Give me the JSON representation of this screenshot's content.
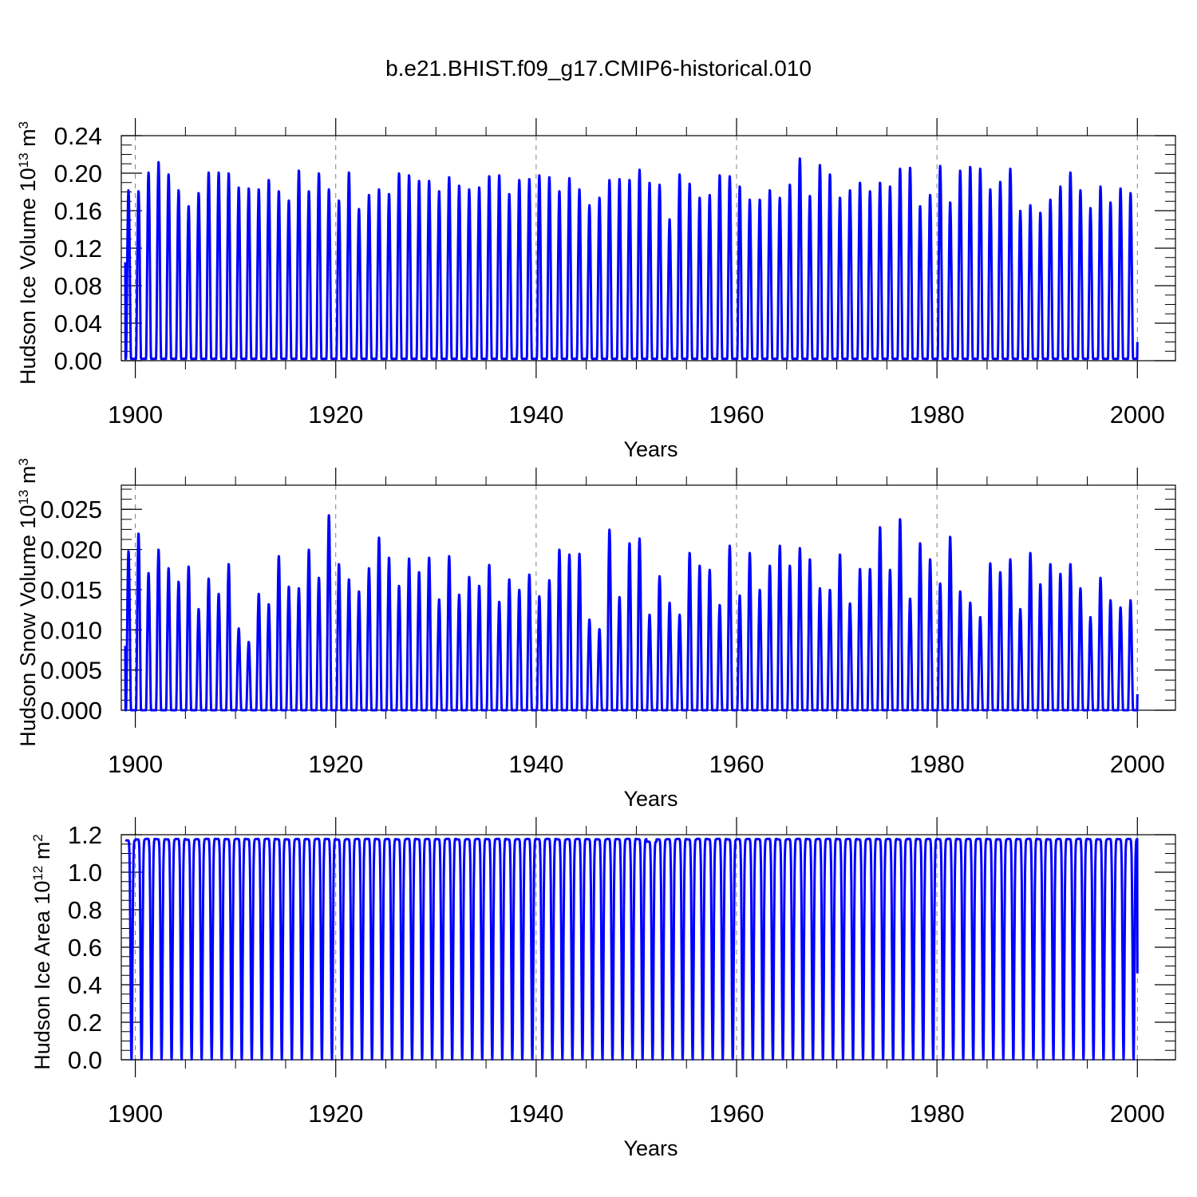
{
  "figure": {
    "title": "b.e21.BHIST.f09_g17.CMIP6-historical.010"
  },
  "style": {
    "line_color": "#0000ff",
    "grid_color": "#808080"
  },
  "chart_data": [
    {
      "type": "line",
      "ylabel": {
        "text": "Hudson Ice Volume 10",
        "exponent": "13",
        "unit": " m",
        "unit_exponent": "3"
      },
      "xlabel": "Years",
      "xlim": [
        1899,
        2000
      ],
      "ylim": [
        0,
        0.24
      ],
      "x_ticks": [
        1900,
        1920,
        1940,
        1960,
        1980,
        2000
      ],
      "x_tick_labels": [
        "1900",
        "1920",
        "1940",
        "1960",
        "1980",
        "2000"
      ],
      "y_ticks": [
        0,
        0.04,
        0.08,
        0.12,
        0.16,
        0.2,
        0.24
      ],
      "y_tick_labels": [
        "0.00",
        "0.04",
        "0.08",
        "0.12",
        "0.16",
        "0.20",
        "0.24"
      ],
      "grid": "vertical dashed at major x ticks",
      "series": [
        {
          "start_year": 1899,
          "start_value": 0.105,
          "end_value": 0.02,
          "min_value": 0.002,
          "annual_max": [
            0.182,
            0.181,
            0.201,
            0.212,
            0.199,
            0.182,
            0.165,
            0.179,
            0.201,
            0.201,
            0.2,
            0.185,
            0.184,
            0.183,
            0.193,
            0.181,
            0.171,
            0.203,
            0.181,
            0.2,
            0.183,
            0.171,
            0.201,
            0.162,
            0.177,
            0.183,
            0.178,
            0.2,
            0.198,
            0.192,
            0.192,
            0.181,
            0.196,
            0.187,
            0.183,
            0.185,
            0.197,
            0.198,
            0.178,
            0.193,
            0.194,
            0.198,
            0.196,
            0.181,
            0.195,
            0.183,
            0.166,
            0.174,
            0.193,
            0.194,
            0.193,
            0.204,
            0.19,
            0.188,
            0.151,
            0.199,
            0.189,
            0.174,
            0.177,
            0.198,
            0.197,
            0.186,
            0.172,
            0.172,
            0.182,
            0.174,
            0.188,
            0.216,
            0.176,
            0.209,
            0.199,
            0.174,
            0.182,
            0.19,
            0.181,
            0.19,
            0.186,
            0.205,
            0.206,
            0.165,
            0.177,
            0.208,
            0.169,
            0.203,
            0.207,
            0.205,
            0.183,
            0.191,
            0.205,
            0.16,
            0.166,
            0.158,
            0.172,
            0.186,
            0.201,
            0.182,
            0.163,
            0.186,
            0.169,
            0.184,
            0.179
          ]
        }
      ]
    },
    {
      "type": "line",
      "ylabel": {
        "text": "Hudson Snow Volume 10",
        "exponent": "13",
        "unit": " m",
        "unit_exponent": "3"
      },
      "xlabel": "Years",
      "xlim": [
        1899,
        2000
      ],
      "ylim": [
        0,
        0.028
      ],
      "x_ticks": [
        1900,
        1920,
        1940,
        1960,
        1980,
        2000
      ],
      "x_tick_labels": [
        "1900",
        "1920",
        "1940",
        "1960",
        "1980",
        "2000"
      ],
      "y_ticks": [
        0,
        0.005,
        0.01,
        0.015,
        0.02,
        0.025
      ],
      "y_tick_labels": [
        "0.000",
        "0.005",
        "0.010",
        "0.015",
        "0.020",
        "0.025"
      ],
      "grid": "vertical dashed at major x ticks",
      "series": [
        {
          "start_year": 1899,
          "start_value": 0.008,
          "end_value": 0.002,
          "min_value": 0.0,
          "annual_max": [
            0.0198,
            0.022,
            0.0171,
            0.02,
            0.0177,
            0.016,
            0.0179,
            0.0126,
            0.0164,
            0.0145,
            0.0182,
            0.0102,
            0.0085,
            0.0145,
            0.0132,
            0.0192,
            0.0154,
            0.0152,
            0.02,
            0.0165,
            0.0243,
            0.0182,
            0.0163,
            0.0148,
            0.0177,
            0.0215,
            0.019,
            0.0155,
            0.0189,
            0.0172,
            0.019,
            0.0138,
            0.0192,
            0.0144,
            0.0166,
            0.0155,
            0.0181,
            0.0135,
            0.0163,
            0.015,
            0.0169,
            0.0142,
            0.0162,
            0.02,
            0.0194,
            0.0195,
            0.0113,
            0.0101,
            0.0225,
            0.0141,
            0.0208,
            0.0214,
            0.0119,
            0.0167,
            0.0134,
            0.0119,
            0.0196,
            0.018,
            0.0175,
            0.0131,
            0.0205,
            0.0143,
            0.0196,
            0.015,
            0.018,
            0.0205,
            0.018,
            0.0202,
            0.0188,
            0.0152,
            0.015,
            0.0194,
            0.0133,
            0.0176,
            0.0176,
            0.0228,
            0.0175,
            0.0238,
            0.0139,
            0.0208,
            0.0188,
            0.0158,
            0.0216,
            0.0148,
            0.0134,
            0.0116,
            0.0183,
            0.0172,
            0.0188,
            0.0126,
            0.0196,
            0.0157,
            0.0182,
            0.017,
            0.0182,
            0.0152,
            0.0116,
            0.0165,
            0.0137,
            0.0128,
            0.0137
          ]
        }
      ]
    },
    {
      "type": "line",
      "ylabel": {
        "text": "Hudson Ice Area 10",
        "exponent": "12",
        "unit": " m",
        "unit_exponent": "2"
      },
      "xlabel": "Years",
      "xlim": [
        1899,
        2000
      ],
      "ylim": [
        0,
        1.2
      ],
      "x_ticks": [
        1900,
        1920,
        1940,
        1960,
        1980,
        2000
      ],
      "x_tick_labels": [
        "1900",
        "1920",
        "1940",
        "1960",
        "1980",
        "2000"
      ],
      "y_ticks": [
        0,
        0.2,
        0.4,
        0.6,
        0.8,
        1.0,
        1.2
      ],
      "y_tick_labels": [
        "0.0",
        "0.2",
        "0.4",
        "0.6",
        "0.8",
        "1.0",
        "1.2"
      ],
      "grid": "vertical dashed at major x ticks",
      "series": [
        {
          "start_year": 1899,
          "start_value": 1.17,
          "end_value": 0.46,
          "min_value": 0.0,
          "annual_max": [
            1.17,
            1.175,
            1.178,
            1.176,
            1.175,
            1.177,
            1.174,
            1.176,
            1.178,
            1.177,
            1.176,
            1.178,
            1.176,
            1.177,
            1.178,
            1.176,
            1.175,
            1.177,
            1.176,
            1.178,
            1.177,
            1.174,
            1.176,
            1.177,
            1.178,
            1.176,
            1.177,
            1.175,
            1.178,
            1.176,
            1.177,
            1.176,
            1.178,
            1.175,
            1.176,
            1.177,
            1.176,
            1.178,
            1.175,
            1.176,
            1.177,
            1.176,
            1.178,
            1.175,
            1.176,
            1.177,
            1.176,
            1.175,
            1.177,
            1.176,
            1.178,
            1.176,
            1.163,
            1.175,
            1.176,
            1.177,
            1.175,
            1.178,
            1.176,
            1.178,
            1.175,
            1.176,
            1.177,
            1.176,
            1.178,
            1.175,
            1.176,
            1.178,
            1.176,
            1.177,
            1.178,
            1.176,
            1.177,
            1.175,
            1.178,
            1.176,
            1.177,
            1.175,
            1.178,
            1.176,
            1.177,
            1.176,
            1.178,
            1.176,
            1.177,
            1.178,
            1.176,
            1.175,
            1.177,
            1.176,
            1.178,
            1.176,
            1.175,
            1.177,
            1.176,
            1.178,
            1.176,
            1.175,
            1.177,
            1.176,
            1.177
          ]
        }
      ]
    }
  ]
}
